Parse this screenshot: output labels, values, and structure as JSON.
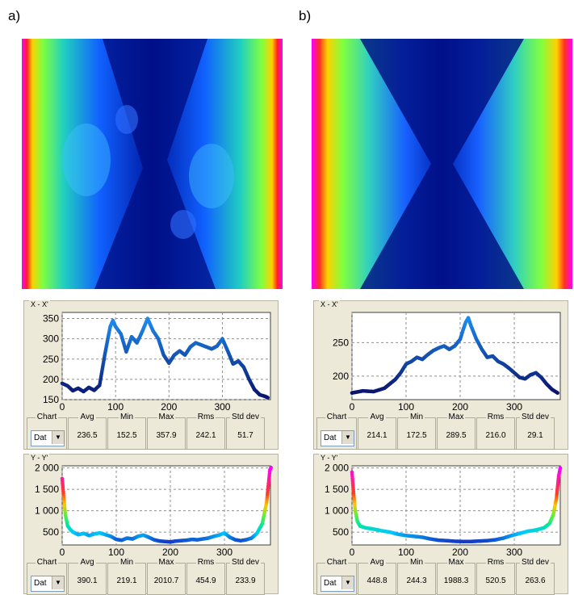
{
  "panels": [
    {
      "letter": "a)",
      "xx": {
        "title": "X - X'",
        "chart_data": {
          "type": "scatter",
          "title": "X - X'",
          "xlim": [
            0,
            390
          ],
          "ylim": [
            150,
            365
          ],
          "x_ticks": [
            "0",
            "100",
            "200",
            "300"
          ],
          "y_ticks": [
            "150",
            "200",
            "250",
            "300",
            "350"
          ],
          "points": [
            [
              0,
              190
            ],
            [
              10,
              184
            ],
            [
              20,
              172
            ],
            [
              30,
              178
            ],
            [
              40,
              170
            ],
            [
              50,
              180
            ],
            [
              60,
              173
            ],
            [
              70,
              185
            ],
            [
              80,
              262
            ],
            [
              90,
              330
            ],
            [
              95,
              345
            ],
            [
              100,
              330
            ],
            [
              110,
              312
            ],
            [
              120,
              268
            ],
            [
              130,
              305
            ],
            [
              140,
              290
            ],
            [
              150,
              318
            ],
            [
              160,
              350
            ],
            [
              170,
              320
            ],
            [
              180,
              300
            ],
            [
              190,
              260
            ],
            [
              200,
              240
            ],
            [
              210,
              260
            ],
            [
              220,
              270
            ],
            [
              230,
              260
            ],
            [
              240,
              280
            ],
            [
              250,
              290
            ],
            [
              260,
              285
            ],
            [
              270,
              280
            ],
            [
              280,
              275
            ],
            [
              290,
              282
            ],
            [
              300,
              300
            ],
            [
              310,
              270
            ],
            [
              320,
              238
            ],
            [
              330,
              245
            ],
            [
              340,
              230
            ],
            [
              350,
              200
            ],
            [
              360,
              175
            ],
            [
              370,
              162
            ],
            [
              380,
              158
            ],
            [
              385,
              155
            ]
          ]
        },
        "stats": {
          "chart_label": "Chart",
          "chart_value": "Dat",
          "avg_label": "Avg",
          "avg": "236.5",
          "min_label": "Min",
          "min": "152.5",
          "max_label": "Max",
          "max": "357.9",
          "rms_label": "Rms",
          "rms": "242.1",
          "std_label": "Std dev",
          "std": "51.7"
        }
      },
      "yy": {
        "title": "Y - Y'",
        "chart_data": {
          "type": "scatter",
          "title": "Y - Y'",
          "xlim": [
            0,
            385
          ],
          "ylim": [
            200,
            2050
          ],
          "x_ticks": [
            "0",
            "100",
            "200",
            "300"
          ],
          "y_ticks": [
            "500",
            "1 000",
            "1 500",
            "2 000"
          ],
          "points": [
            [
              0,
              1750
            ],
            [
              3,
              1300
            ],
            [
              6,
              900
            ],
            [
              10,
              650
            ],
            [
              15,
              560
            ],
            [
              20,
              500
            ],
            [
              30,
              440
            ],
            [
              40,
              470
            ],
            [
              50,
              420
            ],
            [
              60,
              460
            ],
            [
              70,
              480
            ],
            [
              80,
              440
            ],
            [
              90,
              400
            ],
            [
              100,
              330
            ],
            [
              110,
              310
            ],
            [
              120,
              360
            ],
            [
              130,
              340
            ],
            [
              140,
              400
            ],
            [
              150,
              430
            ],
            [
              160,
              380
            ],
            [
              170,
              320
            ],
            [
              180,
              290
            ],
            [
              190,
              280
            ],
            [
              200,
              270
            ],
            [
              210,
              290
            ],
            [
              220,
              300
            ],
            [
              230,
              310
            ],
            [
              240,
              330
            ],
            [
              250,
              320
            ],
            [
              260,
              340
            ],
            [
              270,
              360
            ],
            [
              280,
              400
            ],
            [
              290,
              430
            ],
            [
              300,
              480
            ],
            [
              310,
              380
            ],
            [
              320,
              320
            ],
            [
              330,
              300
            ],
            [
              340,
              320
            ],
            [
              350,
              360
            ],
            [
              360,
              470
            ],
            [
              370,
              700
            ],
            [
              378,
              1200
            ],
            [
              384,
              1950
            ],
            [
              386,
              2010
            ]
          ]
        },
        "stats": {
          "chart_label": "Chart",
          "chart_value": "Dat",
          "avg_label": "Avg",
          "avg": "390.1",
          "min_label": "Min",
          "min": "219.1",
          "max_label": "Max",
          "max": "2010.7",
          "rms_label": "Rms",
          "rms": "454.9",
          "std_label": "Std dev",
          "std": "233.9"
        }
      }
    },
    {
      "letter": "b)",
      "xx": {
        "title": "X - X'",
        "chart_data": {
          "type": "scatter",
          "title": "X - X'",
          "xlim": [
            0,
            385
          ],
          "ylim": [
            165,
            295
          ],
          "x_ticks": [
            "0",
            "100",
            "200",
            "300"
          ],
          "y_ticks": [
            "200",
            "250"
          ],
          "points": [
            [
              0,
              175
            ],
            [
              20,
              178
            ],
            [
              40,
              177
            ],
            [
              60,
              182
            ],
            [
              80,
              195
            ],
            [
              90,
              205
            ],
            [
              100,
              218
            ],
            [
              110,
              222
            ],
            [
              120,
              228
            ],
            [
              130,
              225
            ],
            [
              140,
              232
            ],
            [
              150,
              238
            ],
            [
              160,
              242
            ],
            [
              170,
              245
            ],
            [
              180,
              240
            ],
            [
              190,
              245
            ],
            [
              200,
              255
            ],
            [
              205,
              268
            ],
            [
              210,
              280
            ],
            [
              215,
              287
            ],
            [
              220,
              275
            ],
            [
              230,
              255
            ],
            [
              240,
              240
            ],
            [
              250,
              228
            ],
            [
              260,
              230
            ],
            [
              270,
              222
            ],
            [
              280,
              218
            ],
            [
              290,
              212
            ],
            [
              300,
              205
            ],
            [
              310,
              198
            ],
            [
              320,
              196
            ],
            [
              330,
              202
            ],
            [
              340,
              205
            ],
            [
              350,
              198
            ],
            [
              360,
              188
            ],
            [
              370,
              180
            ],
            [
              380,
              175
            ]
          ]
        },
        "stats": {
          "chart_label": "Chart",
          "chart_value": "Dat",
          "avg_label": "Avg",
          "avg": "214.1",
          "min_label": "Min",
          "min": "172.5",
          "max_label": "Max",
          "max": "289.5",
          "rms_label": "Rms",
          "rms": "216.0",
          "std_label": "Std dev",
          "std": "29.1"
        }
      },
      "yy": {
        "title": "Y - Y'",
        "chart_data": {
          "type": "scatter",
          "title": "Y - Y'",
          "xlim": [
            0,
            385
          ],
          "ylim": [
            200,
            2050
          ],
          "x_ticks": [
            "0",
            "100",
            "200",
            "300"
          ],
          "y_ticks": [
            "500",
            "1 000",
            "1 500",
            "2 000"
          ],
          "points": [
            [
              0,
              1900
            ],
            [
              3,
              1400
            ],
            [
              6,
              1000
            ],
            [
              10,
              750
            ],
            [
              15,
              640
            ],
            [
              25,
              600
            ],
            [
              40,
              570
            ],
            [
              55,
              530
            ],
            [
              70,
              500
            ],
            [
              85,
              450
            ],
            [
              100,
              420
            ],
            [
              115,
              400
            ],
            [
              130,
              380
            ],
            [
              145,
              340
            ],
            [
              160,
              310
            ],
            [
              175,
              300
            ],
            [
              190,
              285
            ],
            [
              205,
              280
            ],
            [
              220,
              280
            ],
            [
              235,
              290
            ],
            [
              250,
              300
            ],
            [
              265,
              320
            ],
            [
              280,
              360
            ],
            [
              295,
              420
            ],
            [
              310,
              470
            ],
            [
              325,
              520
            ],
            [
              340,
              550
            ],
            [
              355,
              600
            ],
            [
              365,
              700
            ],
            [
              372,
              900
            ],
            [
              378,
              1300
            ],
            [
              382,
              1800
            ],
            [
              385,
              2000
            ]
          ]
        },
        "stats": {
          "chart_label": "Chart",
          "chart_value": "Dat",
          "avg_label": "Avg",
          "avg": "448.8",
          "min_label": "Min",
          "min": "244.3",
          "max_label": "Max",
          "max": "1988.3",
          "rms_label": "Rms",
          "rms": "520.5",
          "std_label": "Std dev",
          "std": "263.6"
        }
      }
    }
  ]
}
